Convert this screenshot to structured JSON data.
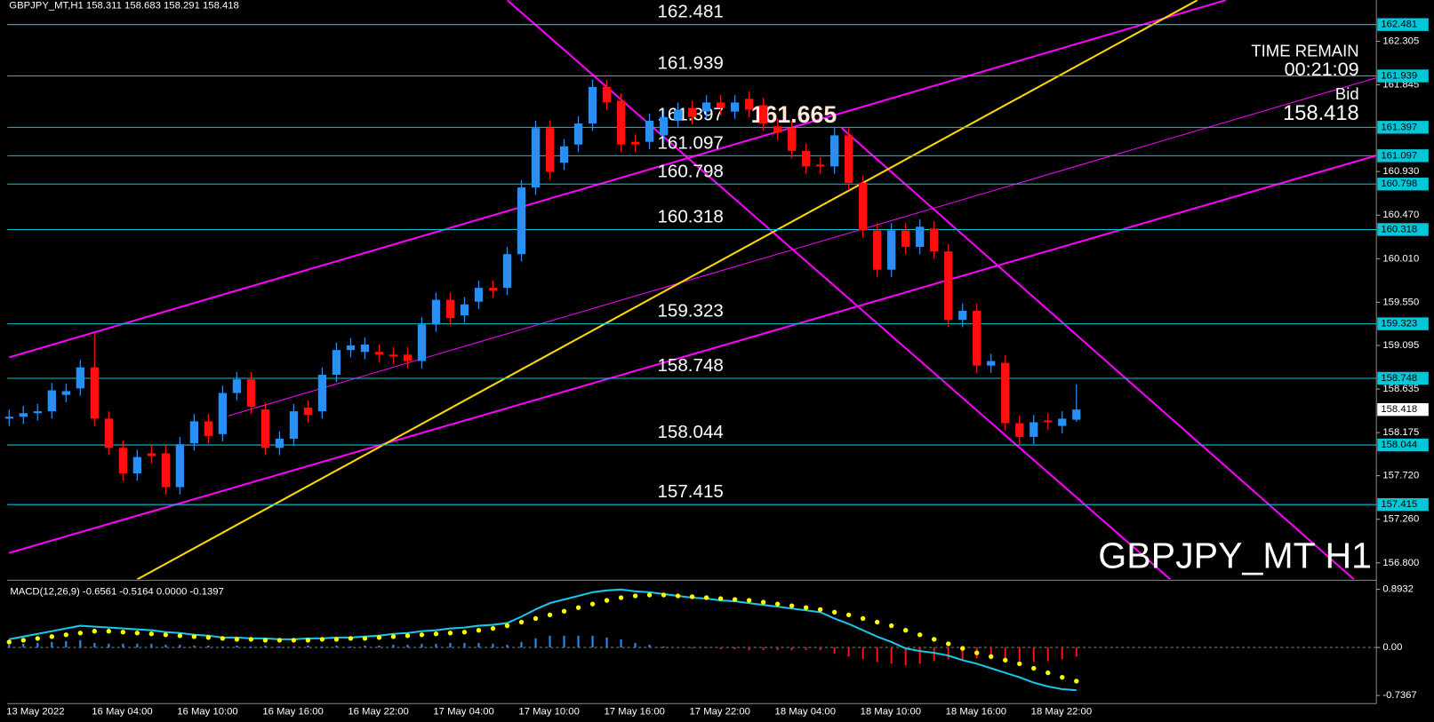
{
  "header": "GBPJPY_MT,H1  158.311 158.683 158.291 158.418",
  "chart_data": [
    {
      "type": "candlestick",
      "title": "GBPJPY_MT H1",
      "categories": [
        "13 May 2022",
        null,
        null,
        null,
        null,
        null,
        "16 May 04:00",
        null,
        null,
        null,
        null,
        null,
        "16 May 10:00",
        null,
        null,
        null,
        null,
        null,
        "16 May 16:00",
        null,
        null,
        null,
        null,
        null,
        "16 May 22:00",
        null,
        null,
        null,
        null,
        null,
        "17 May 04:00",
        null,
        null,
        null,
        null,
        null,
        "17 May 10:00",
        null,
        null,
        null,
        null,
        null,
        "17 May 16:00",
        null,
        null,
        null,
        null,
        null,
        "17 May 22:00",
        null,
        null,
        null,
        null,
        null,
        "18 May 04:00",
        null,
        null,
        null,
        null,
        null,
        "18 May 10:00",
        null,
        null,
        null,
        null,
        null,
        "18 May 16:00",
        null,
        null,
        null,
        null,
        null,
        "18 May 22:00",
        null,
        null,
        null
      ],
      "open": [
        158.322,
        158.342,
        158.38,
        158.4,
        158.573,
        158.641,
        158.863,
        158.322,
        158.014,
        157.744,
        157.956,
        157.956,
        157.599,
        158.062,
        158.294,
        158.159,
        158.593,
        158.737,
        158.419,
        158.014,
        158.11,
        158.438,
        158.4,
        158.785,
        159.046,
        159.026,
        159.026,
        158.998,
        158.998,
        158.93,
        159.316,
        159.576,
        159.412,
        159.557,
        159.702,
        159.702,
        160.058,
        160.762,
        161.389,
        161.023,
        161.215,
        161.437,
        161.823,
        161.678,
        161.244,
        161.244,
        161.312,
        161.466,
        161.601,
        161.563,
        161.659,
        161.563,
        161.698,
        161.63,
        161.408,
        161.389,
        161.148,
        161.003,
        160.984,
        161.312,
        160.81,
        160.309,
        159.894,
        160.309,
        160.135,
        160.328,
        160.087,
        159.364,
        159.46,
        158.882,
        158.911,
        158.274,
        158.13,
        158.303,
        158.245,
        158.311
      ],
      "high": [
        158.419,
        158.457,
        158.477,
        158.698,
        158.689,
        158.94,
        159.219,
        158.399,
        158.091,
        157.994,
        158.033,
        158.033,
        158.129,
        158.371,
        158.371,
        158.67,
        158.814,
        158.814,
        158.496,
        158.187,
        158.477,
        158.515,
        158.862,
        159.123,
        159.171,
        159.181,
        159.103,
        159.075,
        159.075,
        159.393,
        159.653,
        159.653,
        159.605,
        159.779,
        159.779,
        160.135,
        160.839,
        161.466,
        161.466,
        161.273,
        161.514,
        161.9,
        161.9,
        161.755,
        161.321,
        161.543,
        161.582,
        161.659,
        161.678,
        161.736,
        161.736,
        161.736,
        161.775,
        161.707,
        161.485,
        161.466,
        161.225,
        161.08,
        161.389,
        161.389,
        160.887,
        160.386,
        160.386,
        160.386,
        160.425,
        160.405,
        160.164,
        159.537,
        159.537,
        159.007,
        158.988,
        158.351,
        158.361,
        158.38,
        158.399,
        158.683
      ],
      "low": [
        158.245,
        158.265,
        158.303,
        158.323,
        158.496,
        158.564,
        158.245,
        157.937,
        157.667,
        157.667,
        157.85,
        157.522,
        157.522,
        157.985,
        158.062,
        158.082,
        158.516,
        158.371,
        157.937,
        157.937,
        158.033,
        158.284,
        158.323,
        158.708,
        158.969,
        158.949,
        158.921,
        158.901,
        158.853,
        158.853,
        159.239,
        159.306,
        159.335,
        159.48,
        159.596,
        159.625,
        159.981,
        160.685,
        160.849,
        160.946,
        161.138,
        161.36,
        161.582,
        161.138,
        161.138,
        161.167,
        161.235,
        161.389,
        161.428,
        161.486,
        161.524,
        161.486,
        161.505,
        161.36,
        161.264,
        161.071,
        160.907,
        160.907,
        160.907,
        160.733,
        160.232,
        159.817,
        159.817,
        160.058,
        160.058,
        160.01,
        159.287,
        159.287,
        158.805,
        158.805,
        158.197,
        158.053,
        158.053,
        158.207,
        158.168,
        158.291
      ],
      "close": [
        158.342,
        158.38,
        158.4,
        158.621,
        158.612,
        158.863,
        158.322,
        158.014,
        157.744,
        157.917,
        157.927,
        157.599,
        158.052,
        158.294,
        158.139,
        158.593,
        158.737,
        158.448,
        158.014,
        158.11,
        158.4,
        158.361,
        158.785,
        159.046,
        159.094,
        159.104,
        158.998,
        158.978,
        158.93,
        159.316,
        159.576,
        159.383,
        159.528,
        159.702,
        159.673,
        160.058,
        160.762,
        161.389,
        160.926,
        161.196,
        161.437,
        161.823,
        161.659,
        161.215,
        161.215,
        161.466,
        161.505,
        161.582,
        161.505,
        161.659,
        161.601,
        161.659,
        161.582,
        161.437,
        161.341,
        161.148,
        160.984,
        160.984,
        161.312,
        160.81,
        160.309,
        159.894,
        160.309,
        160.135,
        160.348,
        160.087,
        159.364,
        159.46,
        158.882,
        158.93,
        158.274,
        158.13,
        158.284,
        158.284,
        158.322,
        158.418
      ],
      "up_color": "#2b8ff2",
      "down_color": "#ff1010",
      "ylim": [
        156.626,
        162.739
      ],
      "yticks": [
        162.305,
        161.845,
        {
          "value": 160.93,
          "label": "160.930"
        },
        {
          "value": 160.47,
          "label": "160.470"
        },
        {
          "value": 160.01,
          "label": "160.010"
        },
        {
          "value": 159.55,
          "label": "159.550"
        },
        159.095,
        158.635,
        158.175,
        {
          "value": 157.72,
          "label": "157.720"
        },
        {
          "value": 157.26,
          "label": "157.260"
        },
        {
          "value": 156.8,
          "label": "156.800"
        }
      ],
      "levels": {
        "color": "#00c8d8",
        "values": [
          162.481,
          161.939,
          161.397,
          161.097,
          160.798,
          160.318,
          159.323,
          158.748,
          158.044,
          157.415
        ]
      },
      "bid": 158.418,
      "bid_label": "Bid",
      "time_remain_label": "TIME REMAIN",
      "time_remain": "00:21:09",
      "annotation": 161.665,
      "trend_lines": [
        {
          "color": "#ff00ff",
          "width": 2,
          "points": [
            [
              0,
              158.969
            ],
            [
              85.5,
              162.739
            ]
          ]
        },
        {
          "color": "#ff00ff",
          "width": 2,
          "points": [
            [
              0,
              156.905
            ],
            [
              96.1,
              161.1
            ]
          ]
        },
        {
          "color": "#ff00ff",
          "width": 1,
          "points": [
            [
              15.4,
              158.352
            ],
            [
              96.1,
              161.92
            ]
          ]
        },
        {
          "color": "#ff00ff",
          "width": 2,
          "points": [
            [
              35,
              162.739
            ],
            [
              81.6,
              156.626
            ]
          ]
        },
        {
          "color": "#ff00ff",
          "width": 2,
          "points": [
            [
              58.5,
              161.389
            ],
            [
              94.5,
              156.626
            ]
          ]
        },
        {
          "color": "#ffd700",
          "width": 2,
          "points": [
            [
              9,
              156.626
            ],
            [
              83.5,
              162.739
            ]
          ]
        }
      ]
    },
    {
      "type": "macd",
      "title": "MACD(12,26,9) -0.6561 -0.5164 0.0000 -0.1397",
      "ylim": [
        -0.862,
        1.004
      ],
      "yticks": [
        0.8932,
        {
          "value": 0,
          "label": "0.00"
        },
        -0.7367
      ],
      "macd": {
        "color": "#19c6e6",
        "values": [
          0.125,
          0.167,
          0.209,
          0.25,
          0.292,
          0.334,
          0.32,
          0.306,
          0.292,
          0.278,
          0.264,
          0.236,
          0.222,
          0.195,
          0.181,
          0.153,
          0.153,
          0.139,
          0.139,
          0.125,
          0.125,
          0.139,
          0.139,
          0.153,
          0.153,
          0.167,
          0.181,
          0.209,
          0.222,
          0.25,
          0.264,
          0.292,
          0.306,
          0.334,
          0.348,
          0.375,
          0.473,
          0.584,
          0.681,
          0.737,
          0.792,
          0.848,
          0.876,
          0.89,
          0.862,
          0.848,
          0.82,
          0.792,
          0.765,
          0.751,
          0.723,
          0.709,
          0.681,
          0.653,
          0.626,
          0.598,
          0.57,
          0.542,
          0.445,
          0.361,
          0.264,
          0.167,
          0.083,
          -0.014,
          -0.056,
          -0.083,
          -0.125,
          -0.195,
          -0.25,
          -0.32,
          -0.389,
          -0.458,
          -0.54,
          -0.6,
          -0.64,
          -0.6561
        ]
      },
      "signal": {
        "color": "#ffff00",
        "values": [
          0.083,
          0.111,
          0.139,
          0.167,
          0.195,
          0.222,
          0.25,
          0.25,
          0.236,
          0.222,
          0.209,
          0.195,
          0.181,
          0.167,
          0.153,
          0.139,
          0.125,
          0.125,
          0.111,
          0.111,
          0.111,
          0.111,
          0.125,
          0.125,
          0.139,
          0.139,
          0.153,
          0.167,
          0.181,
          0.195,
          0.209,
          0.222,
          0.236,
          0.264,
          0.292,
          0.334,
          0.389,
          0.445,
          0.5,
          0.556,
          0.612,
          0.667,
          0.723,
          0.765,
          0.792,
          0.806,
          0.806,
          0.792,
          0.779,
          0.765,
          0.751,
          0.737,
          0.723,
          0.695,
          0.667,
          0.64,
          0.612,
          0.584,
          0.542,
          0.5,
          0.445,
          0.389,
          0.334,
          0.264,
          0.195,
          0.125,
          0.056,
          -0.014,
          -0.083,
          -0.139,
          -0.195,
          -0.25,
          -0.32,
          -0.389,
          -0.458,
          -0.5164
        ]
      },
      "histogram": {
        "up_color": "#2b8ff2",
        "down_color": "#ff1010",
        "values": [
          0.042,
          0.056,
          0.07,
          0.083,
          0.097,
          0.112,
          0.07,
          0.056,
          0.056,
          0.056,
          0.055,
          0.041,
          0.041,
          0.028,
          0.028,
          0.014,
          0.028,
          0.014,
          0.028,
          0.014,
          0.014,
          0.028,
          0.014,
          0.028,
          0.014,
          0.028,
          0.028,
          0.042,
          0.041,
          0.055,
          0.055,
          0.07,
          0.07,
          0.07,
          0.056,
          0.041,
          0.084,
          0.139,
          0.181,
          0.181,
          0.18,
          0.181,
          0.153,
          0.125,
          0.07,
          0.042,
          0.014,
          0.0,
          -0.014,
          -0.014,
          -0.028,
          -0.028,
          -0.042,
          -0.042,
          -0.041,
          -0.042,
          -0.042,
          -0.042,
          -0.097,
          -0.139,
          -0.181,
          -0.222,
          -0.251,
          -0.278,
          -0.251,
          -0.208,
          -0.181,
          -0.181,
          -0.167,
          -0.181,
          -0.194,
          -0.208,
          -0.22,
          -0.211,
          -0.182,
          -0.1397
        ]
      }
    }
  ]
}
